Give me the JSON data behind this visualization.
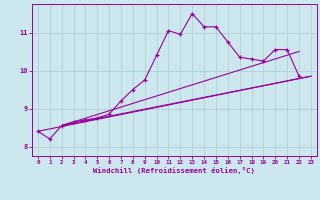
{
  "xlabel": "Windchill (Refroidissement éolien,°C)",
  "bg_color": "#cce8ee",
  "grid_color": "#aacccc",
  "line_color": "#990099",
  "xlim": [
    -0.5,
    23.5
  ],
  "ylim": [
    7.75,
    11.75
  ],
  "yticks": [
    8,
    9,
    10,
    11
  ],
  "xticks": [
    0,
    1,
    2,
    3,
    4,
    5,
    6,
    7,
    8,
    9,
    10,
    11,
    12,
    13,
    14,
    15,
    16,
    17,
    18,
    19,
    20,
    21,
    22,
    23
  ],
  "line1_x": [
    0,
    1,
    2,
    3,
    4,
    5,
    6,
    7,
    8,
    9,
    10,
    11,
    12,
    13,
    14,
    15,
    16,
    17,
    18,
    19,
    20,
    21,
    22
  ],
  "line1_y": [
    8.4,
    8.2,
    8.55,
    8.65,
    8.7,
    8.75,
    8.85,
    9.2,
    9.5,
    9.75,
    10.4,
    11.05,
    10.95,
    11.5,
    11.15,
    11.15,
    10.75,
    10.35,
    10.3,
    10.25,
    10.55,
    10.55,
    9.85
  ],
  "line2_x": [
    0,
    23
  ],
  "line2_y": [
    8.4,
    9.85
  ],
  "line3_x": [
    2,
    23
  ],
  "line3_y": [
    8.55,
    9.85
  ],
  "line4_x": [
    2,
    22
  ],
  "line4_y": [
    8.55,
    10.5
  ]
}
